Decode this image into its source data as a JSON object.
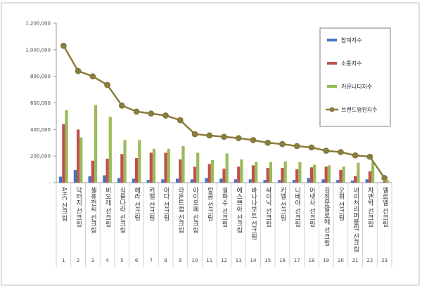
{
  "chart_data": {
    "type": "bar",
    "categories": [
      "AHC 선크림",
      "닥터지 선크림",
      "셀퓨전씨 선크림",
      "비오레 선크림",
      "식물나라 선크림",
      "헤라 선크림",
      "키엘 선크림",
      "아다 선크림",
      "라운드랩 선크림",
      "아이오페 선크림",
      "랑콤 선크림",
      "설화수 선크림",
      "에스쁘아 선크림",
      "바나나보트 선크림",
      "싸이닉 선크림",
      "키엘 선크림",
      "니베아 선크림",
      "아넷사 선크림",
      "김정문알로에 선크림",
      "오휘 선크림",
      "네이처리퍼블릭 선크림",
      "차앤박 선크림",
      "엘로엘 선크림"
    ],
    "ranks": [
      "1",
      "2",
      "3",
      "4",
      "5",
      "6",
      "7",
      "8",
      "9",
      "10",
      "11",
      "12",
      "13",
      "14",
      "15",
      "16",
      "17",
      "18",
      "19",
      "20",
      "21",
      "22",
      "23"
    ],
    "series": [
      {
        "name": "참여지수",
        "color": "#4472c4",
        "values": [
          45000,
          95000,
          48000,
          55000,
          35000,
          30000,
          20000,
          25000,
          30000,
          25000,
          35000,
          30000,
          25000,
          25000,
          20000,
          20000,
          20000,
          35000,
          25000,
          20000,
          15000,
          25000,
          2000
        ]
      },
      {
        "name": "소통지수",
        "color": "#c0504d",
        "values": [
          440000,
          400000,
          165000,
          180000,
          215000,
          185000,
          225000,
          225000,
          175000,
          120000,
          140000,
          105000,
          120000,
          130000,
          110000,
          110000,
          100000,
          115000,
          120000,
          95000,
          50000,
          85000,
          10000
        ]
      },
      {
        "name": "커뮤니티지수",
        "color": "#9bbb59",
        "values": [
          545000,
          340000,
          585000,
          495000,
          320000,
          320000,
          255000,
          255000,
          275000,
          225000,
          170000,
          220000,
          175000,
          155000,
          155000,
          160000,
          155000,
          135000,
          130000,
          120000,
          150000,
          155000,
          20000
        ]
      },
      {
        "name": "브랜드평판지수",
        "color": "#8b7d3a",
        "values": [
          1030000,
          840000,
          800000,
          735000,
          580000,
          535000,
          520000,
          505000,
          470000,
          365000,
          355000,
          345000,
          335000,
          320000,
          300000,
          290000,
          275000,
          265000,
          240000,
          230000,
          205000,
          195000,
          35000
        ]
      }
    ],
    "ylim": [
      0,
      1200000
    ],
    "yticks": [
      "-",
      "200,000",
      "400,000",
      "600,000",
      "800,000",
      "1,000,000",
      "1,200,000"
    ],
    "grid": false,
    "legend_position": "right"
  }
}
